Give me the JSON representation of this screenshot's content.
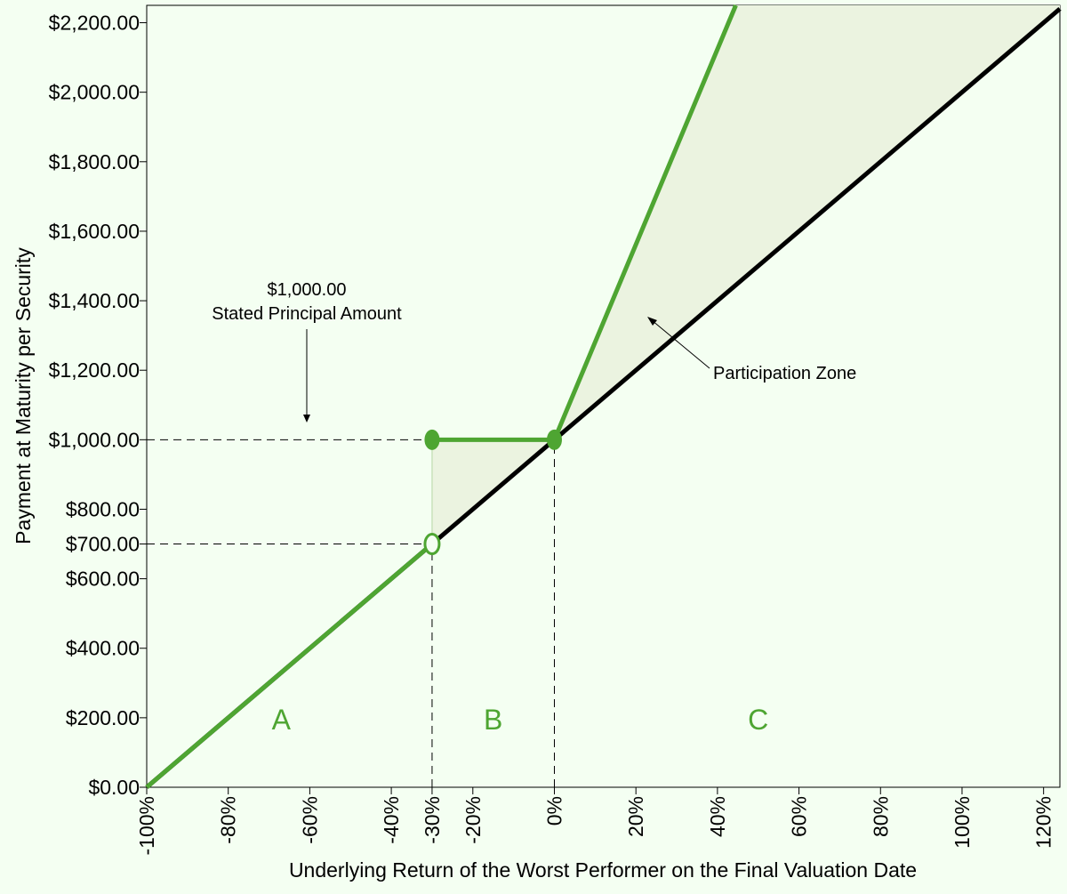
{
  "chart_data": {
    "type": "line",
    "title": "",
    "xlabel": "Underlying Return of the Worst Performer on the Final Valuation Date",
    "ylabel": "Payment at Maturity per Security",
    "xlim": [
      -100,
      124
    ],
    "ylim": [
      0,
      2250
    ],
    "x_ticks": [
      -100,
      -80,
      -60,
      -40,
      -30,
      -20,
      0,
      20,
      40,
      60,
      80,
      100,
      120
    ],
    "x_tick_labels": [
      "-100%",
      "-80%",
      "-60%",
      "-40%",
      "-30%",
      "-20%",
      "0%",
      "20%",
      "40%",
      "60%",
      "80%",
      "100%",
      "120%"
    ],
    "y_ticks": [
      0,
      200,
      400,
      600,
      700,
      800,
      1000,
      1200,
      1400,
      1600,
      1800,
      2000,
      2200
    ],
    "y_tick_labels": [
      "$0.00",
      "$200.00",
      "$400.00",
      "$600.00",
      "$700.00",
      "$800.00",
      "$1,000.00",
      "$1,200.00",
      "$1,400.00",
      "$1,600.00",
      "$1,800.00",
      "$2,000.00",
      "$2,200.00"
    ],
    "grid": false,
    "series": [
      {
        "role": "underlying",
        "color": "#000000",
        "points": [
          [
            -100,
            0
          ],
          [
            124,
            2240
          ]
        ]
      },
      {
        "role": "security-payment",
        "color": "#4ea532",
        "segments": [
          [
            [
              -100,
              0
            ],
            [
              -30,
              700
            ]
          ],
          [
            [
              -30,
              1000
            ],
            [
              0,
              1000
            ]
          ],
          [
            [
              0,
              1000
            ],
            [
              44.5,
              2250
            ]
          ]
        ]
      }
    ],
    "markers": [
      {
        "x": -30,
        "y": 1000,
        "style": "filled"
      },
      {
        "x": 0,
        "y": 1000,
        "style": "filled"
      },
      {
        "x": -30,
        "y": 700,
        "style": "open"
      }
    ],
    "shaded_regions": [
      {
        "name": "buffer",
        "color": "#ebf3e0",
        "polygon": [
          [
            -30,
            700
          ],
          [
            -30,
            1000
          ],
          [
            0,
            1000
          ]
        ]
      },
      {
        "name": "participation",
        "color": "#ebf3e0",
        "polygon": [
          [
            0,
            1000
          ],
          [
            44.5,
            2250
          ],
          [
            124,
            2250
          ],
          [
            124,
            2240
          ]
        ]
      }
    ],
    "reference_lines": [
      {
        "from": [
          -100,
          1000
        ],
        "to": [
          0,
          1000
        ]
      },
      {
        "from": [
          -100,
          700
        ],
        "to": [
          -30,
          700
        ]
      },
      {
        "from": [
          -30,
          0
        ],
        "to": [
          -30,
          700
        ]
      },
      {
        "from": [
          0,
          0
        ],
        "to": [
          0,
          1000
        ]
      }
    ],
    "annotations": {
      "principal_amount": "$1,000.00",
      "principal_label": "Stated Principal Amount",
      "participation_label": "Participation Zone"
    },
    "regions": [
      {
        "label": "A",
        "color": "#4ea532",
        "x": -67,
        "y": 200
      },
      {
        "label": "B",
        "color": "#4ea532",
        "x": -15,
        "y": 200
      },
      {
        "label": "C",
        "color": "#4ea532",
        "x": 50,
        "y": 200
      }
    ]
  }
}
